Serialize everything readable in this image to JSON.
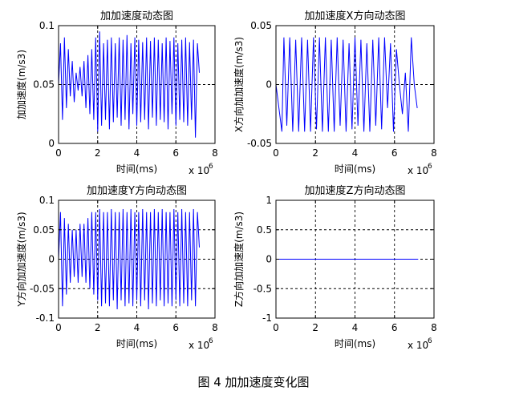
{
  "caption": "图 4  加加速度变化图",
  "chart_data": [
    {
      "type": "line",
      "title": "加加速度动态图",
      "xlabel": "时间(ms)",
      "ylabel": "加加速度(m/s3)",
      "x_exponent_label": "x 10",
      "x_exponent_power": "6",
      "xlim": [
        0,
        8
      ],
      "ylim": [
        0,
        0.1
      ],
      "xticks": [
        "0",
        "2",
        "4",
        "6",
        "8"
      ],
      "yticks": [
        "0",
        "0.05",
        "0.1"
      ],
      "ytick_values": [
        0,
        0.05,
        0.1
      ],
      "grid": true,
      "color": "#0000ff",
      "series": [
        {
          "x": [
            0.0,
            0.1,
            0.2,
            0.3,
            0.4,
            0.5,
            0.6,
            0.7,
            0.8,
            0.9,
            1.0,
            1.1,
            1.2,
            1.3,
            1.4,
            1.5,
            1.6,
            1.7,
            1.8,
            1.9,
            2.0,
            2.1,
            2.2,
            2.3,
            2.4,
            2.5,
            2.6,
            2.7,
            2.8,
            2.9,
            3.0,
            3.1,
            3.2,
            3.3,
            3.4,
            3.5,
            3.6,
            3.7,
            3.8,
            3.9,
            4.0,
            4.1,
            4.2,
            4.3,
            4.4,
            4.5,
            4.6,
            4.7,
            4.8,
            4.9,
            5.0,
            5.1,
            5.2,
            5.3,
            5.4,
            5.5,
            5.6,
            5.7,
            5.8,
            5.9,
            6.0,
            6.1,
            6.2,
            6.3,
            6.4,
            6.5,
            6.6,
            6.7,
            6.8,
            6.9,
            7.0,
            7.1,
            7.2
          ],
          "y": [
            0.05,
            0.085,
            0.02,
            0.09,
            0.03,
            0.08,
            0.04,
            0.07,
            0.035,
            0.06,
            0.045,
            0.065,
            0.04,
            0.07,
            0.03,
            0.075,
            0.025,
            0.08,
            0.02,
            0.09,
            0.01,
            0.095,
            0.015,
            0.085,
            0.02,
            0.088,
            0.012,
            0.09,
            0.018,
            0.085,
            0.022,
            0.09,
            0.015,
            0.088,
            0.02,
            0.092,
            0.012,
            0.085,
            0.025,
            0.09,
            0.015,
            0.088,
            0.018,
            0.086,
            0.02,
            0.09,
            0.012,
            0.087,
            0.022,
            0.09,
            0.015,
            0.088,
            0.02,
            0.085,
            0.018,
            0.09,
            0.012,
            0.087,
            0.025,
            0.09,
            0.015,
            0.085,
            0.02,
            0.088,
            0.018,
            0.09,
            0.015,
            0.086,
            0.02,
            0.088,
            0.005,
            0.085,
            0.06
          ]
        }
      ]
    },
    {
      "type": "line",
      "title": "加加速度X方向动态图",
      "xlabel": "时间(ms)",
      "ylabel": "X方向加加速度(m/s3)",
      "x_exponent_label": "x 10",
      "x_exponent_power": "6",
      "xlim": [
        0,
        8
      ],
      "ylim": [
        -0.05,
        0.05
      ],
      "xticks": [
        "0",
        "2",
        "4",
        "6",
        "8"
      ],
      "yticks": [
        "-0.05",
        "0",
        "0.05"
      ],
      "ytick_values": [
        -0.05,
        0,
        0.05
      ],
      "grid": true,
      "color": "#0000ff",
      "series": [
        {
          "x": [
            0.0,
            0.3,
            0.4,
            0.55,
            0.7,
            0.85,
            1.0,
            1.15,
            1.3,
            1.45,
            1.6,
            1.75,
            1.9,
            2.05,
            2.2,
            2.35,
            2.5,
            2.65,
            2.8,
            2.95,
            3.1,
            3.25,
            3.4,
            3.55,
            3.7,
            3.85,
            4.0,
            4.15,
            4.3,
            4.45,
            4.6,
            4.75,
            4.9,
            5.05,
            5.2,
            5.35,
            5.5,
            5.65,
            5.8,
            5.95,
            6.1,
            6.25,
            6.4,
            6.55,
            6.7,
            6.85,
            7.0,
            7.15
          ],
          "y": [
            0.0,
            -0.04,
            0.04,
            -0.035,
            0.04,
            -0.04,
            0.038,
            -0.04,
            0.04,
            -0.04,
            0.038,
            -0.04,
            0.04,
            -0.038,
            0.04,
            -0.04,
            0.04,
            -0.04,
            0.038,
            -0.04,
            0.04,
            -0.035,
            0.038,
            -0.04,
            0.035,
            -0.038,
            0.04,
            -0.035,
            0.038,
            -0.04,
            0.035,
            -0.04,
            0.038,
            -0.035,
            0.04,
            -0.038,
            0.04,
            -0.02,
            0.035,
            -0.04,
            0.03,
            0.0,
            -0.025,
            0.01,
            -0.04,
            0.04,
            0.0,
            -0.02
          ]
        }
      ]
    },
    {
      "type": "line",
      "title": "加加速度Y方向动态图",
      "xlabel": "时间(ms)",
      "ylabel": "Y方向加加速度(m/s3)",
      "x_exponent_label": "x 10",
      "x_exponent_power": "6",
      "xlim": [
        0,
        8
      ],
      "ylim": [
        -0.1,
        0.1
      ],
      "xticks": [
        "0",
        "2",
        "4",
        "6",
        "8"
      ],
      "yticks": [
        "-0.1",
        "-0.05",
        "0",
        "0.05",
        "0.1"
      ],
      "ytick_values": [
        -0.1,
        -0.05,
        0,
        0.05,
        0.1
      ],
      "grid": true,
      "color": "#0000ff",
      "series": [
        {
          "x": [
            0.0,
            0.1,
            0.2,
            0.3,
            0.4,
            0.5,
            0.6,
            0.7,
            0.8,
            0.9,
            1.0,
            1.1,
            1.2,
            1.3,
            1.4,
            1.5,
            1.6,
            1.7,
            1.8,
            1.9,
            2.0,
            2.1,
            2.2,
            2.3,
            2.4,
            2.5,
            2.6,
            2.7,
            2.8,
            2.9,
            3.0,
            3.1,
            3.2,
            3.3,
            3.4,
            3.5,
            3.6,
            3.7,
            3.8,
            3.9,
            4.0,
            4.1,
            4.2,
            4.3,
            4.4,
            4.5,
            4.6,
            4.7,
            4.8,
            4.9,
            5.0,
            5.1,
            5.2,
            5.3,
            5.4,
            5.5,
            5.6,
            5.7,
            5.8,
            5.9,
            6.0,
            6.1,
            6.2,
            6.3,
            6.4,
            6.5,
            6.6,
            6.7,
            6.8,
            6.9,
            7.0,
            7.1,
            7.2
          ],
          "y": [
            0.0,
            0.08,
            -0.08,
            0.07,
            -0.06,
            0.06,
            -0.04,
            0.05,
            -0.03,
            0.05,
            -0.04,
            0.06,
            -0.03,
            0.06,
            -0.04,
            0.07,
            -0.05,
            0.08,
            -0.06,
            0.08,
            -0.07,
            0.085,
            -0.08,
            0.08,
            -0.075,
            0.08,
            -0.08,
            0.085,
            -0.07,
            0.08,
            -0.085,
            0.08,
            -0.07,
            0.085,
            -0.08,
            0.08,
            -0.075,
            0.085,
            -0.08,
            0.08,
            -0.07,
            0.08,
            -0.08,
            0.085,
            -0.07,
            0.08,
            -0.085,
            0.08,
            -0.075,
            0.085,
            -0.08,
            0.08,
            -0.07,
            0.085,
            -0.08,
            0.08,
            -0.075,
            0.08,
            -0.08,
            0.085,
            -0.07,
            0.08,
            -0.08,
            0.085,
            -0.075,
            0.08,
            -0.08,
            0.08,
            -0.07,
            0.085,
            -0.08,
            0.08,
            0.02
          ]
        }
      ]
    },
    {
      "type": "line",
      "title": "加加速度Z方向动态图",
      "xlabel": "时间(ms)",
      "ylabel": "Z方向加加速度(m/s3)",
      "x_exponent_label": "x 10",
      "x_exponent_power": "6",
      "xlim": [
        0,
        8
      ],
      "ylim": [
        -1,
        1
      ],
      "xticks": [
        "0",
        "2",
        "4",
        "6",
        "8"
      ],
      "yticks": [
        "-1",
        "-0.5",
        "0",
        "0.5",
        "1"
      ],
      "ytick_values": [
        -1,
        -0.5,
        0,
        0.5,
        1
      ],
      "grid": true,
      "color": "#0000ff",
      "series": [
        {
          "x": [
            0,
            7.2
          ],
          "y": [
            0,
            0
          ]
        }
      ]
    }
  ]
}
